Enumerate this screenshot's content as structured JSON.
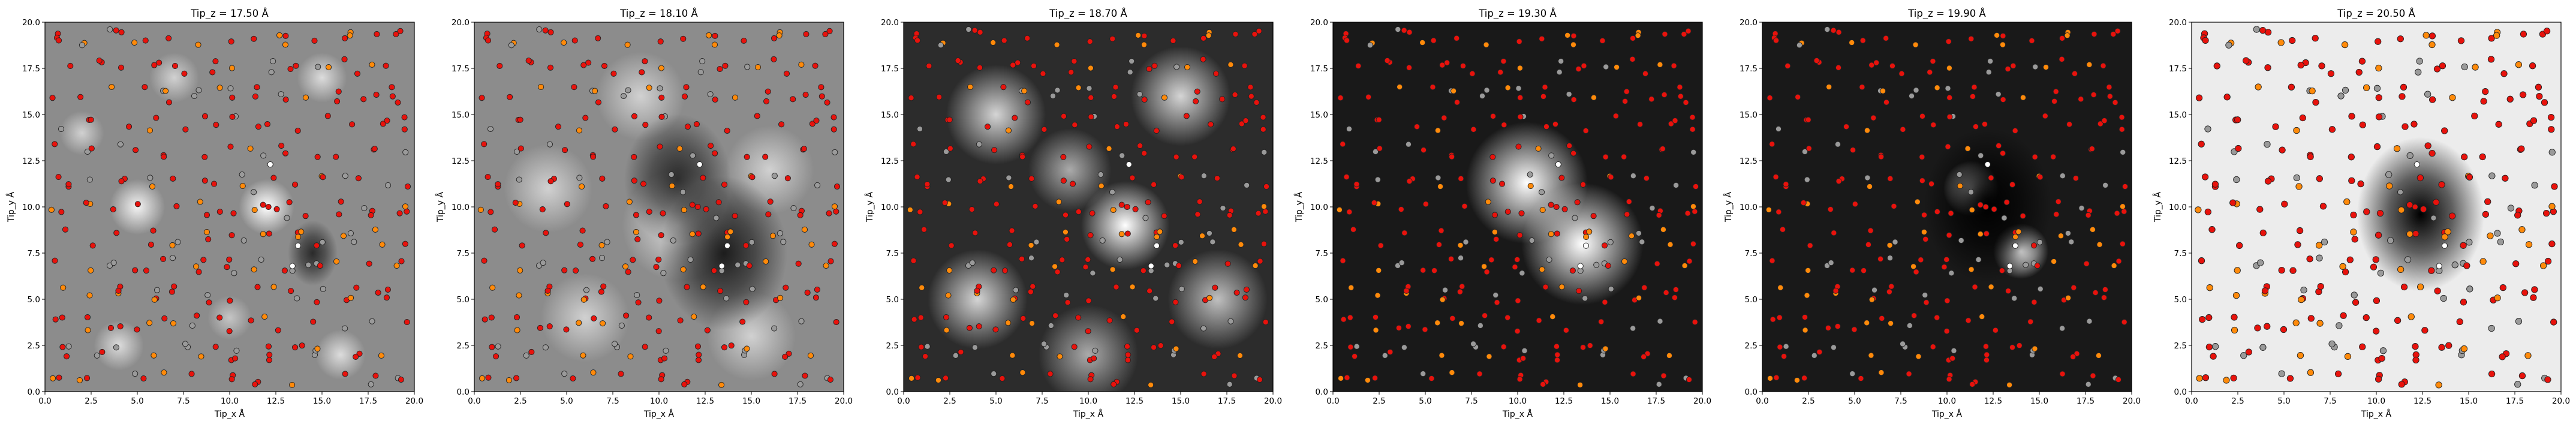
{
  "chart_data": {
    "type": "heatmap",
    "panels": [
      {
        "title": "Tip_z = 17.50 Å",
        "background": "gray",
        "blobs": [
          [
            5,
            10,
            1.0,
            0.9
          ],
          [
            12,
            10,
            1.0,
            1.0
          ],
          [
            4,
            2.5,
            0.9,
            0.7
          ],
          [
            16,
            2,
            0.9,
            0.7
          ],
          [
            15,
            17,
            0.9,
            0.7
          ],
          [
            7,
            17,
            0.9,
            0.6
          ],
          [
            2,
            14,
            0.8,
            0.6
          ],
          [
            10,
            4,
            0.8,
            0.5
          ]
        ],
        "dark": [
          [
            14.5,
            7.5,
            -0.5,
            0.7
          ]
        ]
      },
      {
        "title": "Tip_z = 18.10 Å",
        "background": "gray",
        "blobs": [
          [
            11,
            9,
            2.0,
            0.7
          ],
          [
            4,
            11,
            1.6,
            0.6
          ],
          [
            16,
            12,
            1.6,
            0.6
          ],
          [
            6,
            4,
            1.6,
            0.6
          ],
          [
            15,
            3,
            1.6,
            0.6
          ],
          [
            9,
            16,
            1.6,
            0.6
          ]
        ],
        "dark": [
          [
            13.5,
            7.5,
            2.0,
            0.8
          ],
          [
            11,
            11.5,
            1.6,
            0.7
          ]
        ]
      },
      {
        "title": "Tip_z = 18.70 Å",
        "background": "dark",
        "blobs": [
          [
            12,
            9,
            1.6,
            1.0
          ],
          [
            5,
            15,
            1.8,
            0.8
          ],
          [
            15,
            16,
            1.8,
            0.8
          ],
          [
            4,
            5,
            1.8,
            0.8
          ],
          [
            17,
            5,
            1.8,
            0.7
          ],
          [
            9,
            12,
            1.5,
            0.6
          ],
          [
            10,
            2,
            1.8,
            0.6
          ]
        ],
        "dark": []
      },
      {
        "title": "Tip_z = 19.30 Å",
        "background": "black",
        "blobs": [
          [
            10.5,
            11.3,
            2.2,
            1.6
          ],
          [
            13.5,
            8.0,
            2.2,
            1.7
          ]
        ],
        "dark": []
      },
      {
        "title": "Tip_z = 19.90 Å",
        "background": "black",
        "blobs": [
          [
            11.3,
            11.0,
            1.0,
            1.3
          ],
          [
            14.0,
            7.6,
            1.0,
            1.4
          ]
        ],
        "dark": [
          [
            12.2,
            10.1,
            2.0,
            1.6
          ]
        ]
      },
      {
        "title": "Tip_z = 20.50 Å",
        "background": "light",
        "blobs": [],
        "dark": [
          [
            12.4,
            9.6,
            2.0,
            2.0
          ]
        ]
      }
    ],
    "xlabel": "Tip_x Å",
    "ylabel": "Tip_y Å",
    "xlim": [
      0,
      20
    ],
    "ylim": [
      0,
      20
    ],
    "xticks": [
      "0.0",
      "2.5",
      "5.0",
      "7.5",
      "10.0",
      "12.5",
      "15.0",
      "17.5",
      "20.0"
    ],
    "yticks": [
      "0.0",
      "2.5",
      "5.0",
      "7.5",
      "10.0",
      "12.5",
      "15.0",
      "17.5",
      "20.0"
    ],
    "atom_colors": {
      "oxygen": "#e8120c",
      "carbon": "#9a9a9a",
      "nitrogen": "#ff8a0a",
      "hydrogen": "#ffffff"
    },
    "molecule_atoms": [
      {
        "x": 12.2,
        "y": 12.3,
        "type": "hydrogen"
      },
      {
        "x": 11.3,
        "y": 10.8,
        "type": "carbon"
      },
      {
        "x": 12.1,
        "y": 10.0,
        "type": "oxygen"
      },
      {
        "x": 13.1,
        "y": 9.4,
        "type": "carbon"
      },
      {
        "x": 13.7,
        "y": 7.9,
        "type": "hydrogen"
      },
      {
        "x": 13.4,
        "y": 6.8,
        "type": "hydrogen"
      }
    ]
  }
}
